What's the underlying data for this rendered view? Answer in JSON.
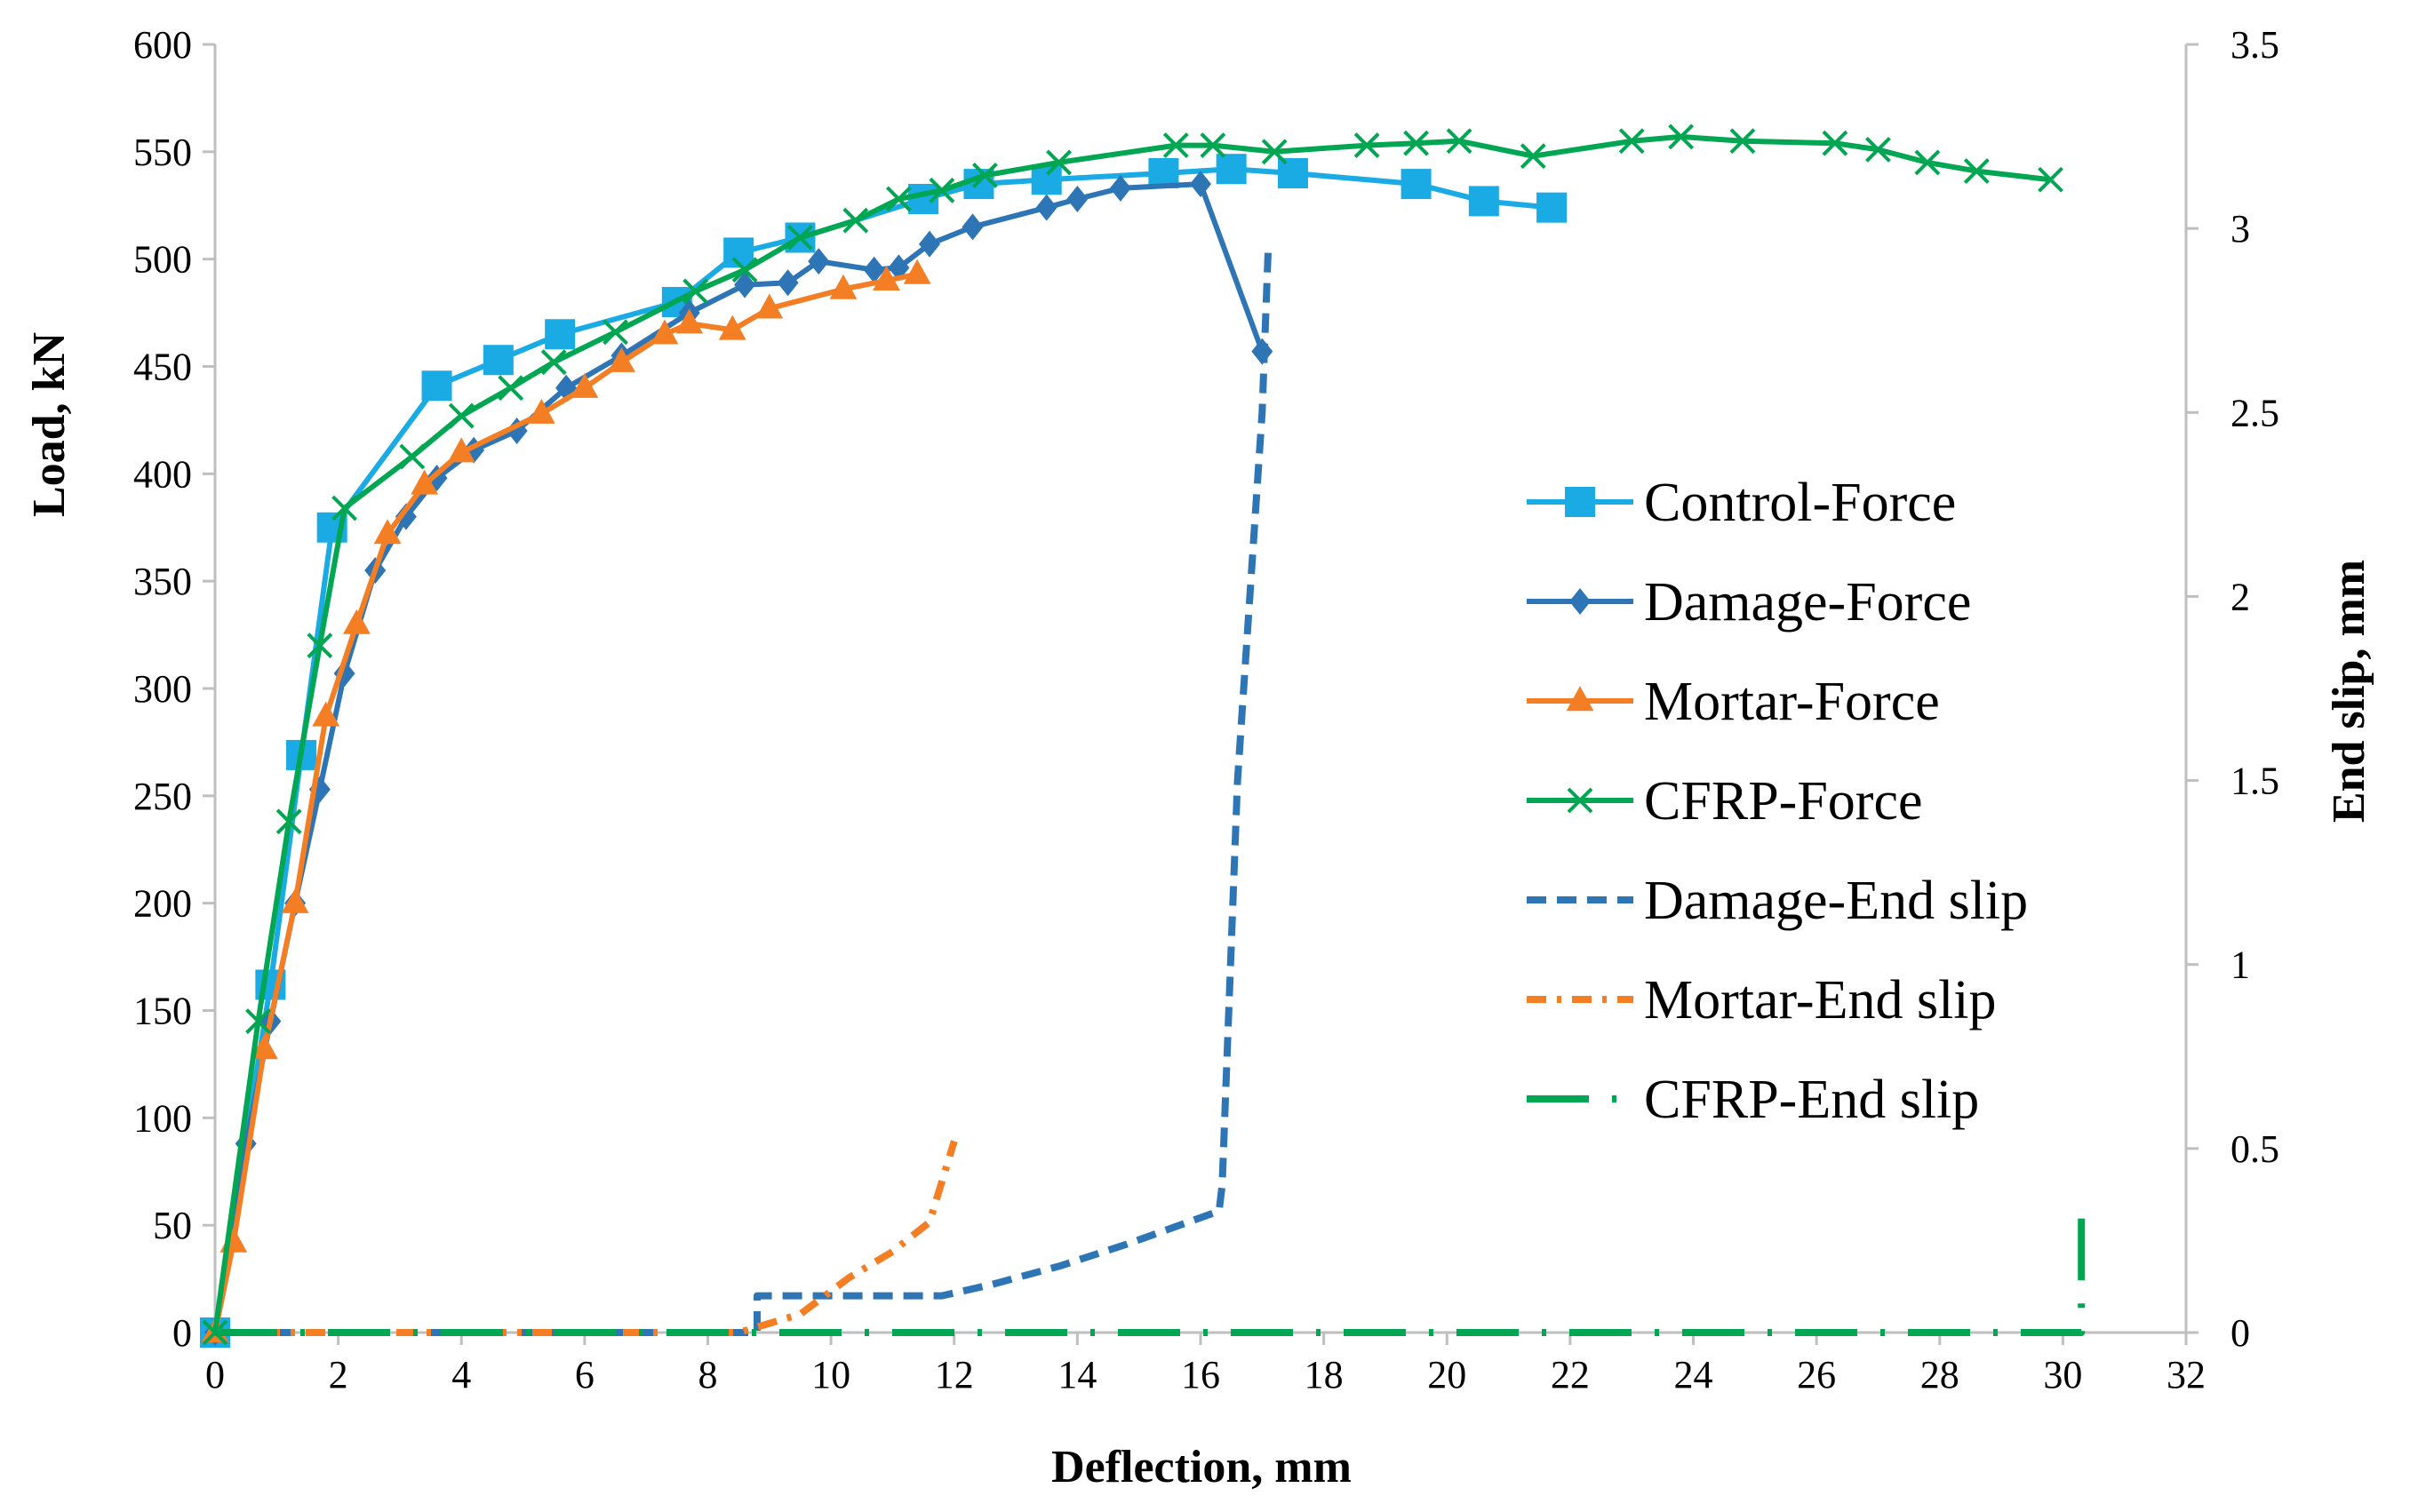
{
  "chart_data": {
    "type": "line",
    "title": "",
    "xlabel": "Deflection, mm",
    "ylabel": "Load, kN",
    "y2label": "End slip, mm",
    "xlim": [
      0,
      32
    ],
    "ylim": [
      0,
      600
    ],
    "y2lim": [
      0,
      3.5
    ],
    "xticks": [
      "0",
      "2",
      "4",
      "6",
      "8",
      "10",
      "12",
      "14",
      "16",
      "18",
      "20",
      "22",
      "24",
      "26",
      "28",
      "30",
      "32"
    ],
    "yticks": [
      "0",
      "50",
      "100",
      "150",
      "200",
      "250",
      "300",
      "350",
      "400",
      "450",
      "500",
      "550",
      "600"
    ],
    "y2ticks": [
      "0",
      "0.5",
      "1",
      "1.5",
      "2",
      "2.5",
      "3",
      "3.5"
    ],
    "grid": false,
    "legend_position": "right-center",
    "series": [
      {
        "name": "Control-Force",
        "axis": "left",
        "color": "#1AABE4",
        "marker": "square",
        "dash": "solid",
        "x": [
          0,
          0.9,
          1.4,
          1.9,
          3.6,
          4.6,
          5.6,
          7.5,
          8.5,
          9.5,
          11.5,
          12.4,
          13.5,
          15.4,
          16.5,
          17.5,
          19.5,
          20.6,
          21.7
        ],
        "y": [
          0,
          162,
          269,
          375,
          441,
          453,
          465,
          480,
          503,
          510,
          528,
          535,
          537,
          540,
          542,
          540,
          535,
          527,
          524
        ]
      },
      {
        "name": "Damage-Force",
        "axis": "left",
        "color": "#2E75B6",
        "marker": "diamond",
        "dash": "solid",
        "x": [
          0,
          0.5,
          0.9,
          1.3,
          1.7,
          2.1,
          2.6,
          3.1,
          3.6,
          4.2,
          4.9,
          5.7,
          6.6,
          7.7,
          8.6,
          9.3,
          9.8,
          10.7,
          11.1,
          11.6,
          12.3,
          13.5,
          14.0,
          14.7,
          16.0,
          17.0
        ],
        "y": [
          0,
          88,
          145,
          200,
          253,
          307,
          355,
          380,
          398,
          411,
          420,
          440,
          455,
          475,
          488,
          489,
          499,
          495,
          496,
          507,
          515,
          524,
          528,
          533,
          535,
          457
        ]
      },
      {
        "name": "Mortar-Force",
        "axis": "left",
        "color": "#F47E24",
        "marker": "triangle",
        "dash": "solid",
        "x": [
          0,
          0.3,
          0.8,
          1.3,
          1.8,
          2.3,
          2.8,
          3.4,
          4.0,
          5.3,
          6.0,
          6.6,
          7.3,
          7.7,
          8.4,
          9.0,
          10.2,
          10.9,
          11.4
        ],
        "y": [
          0,
          42,
          132,
          200,
          287,
          330,
          372,
          395,
          410,
          428,
          440,
          452,
          465,
          470,
          467,
          477,
          486,
          490,
          493
        ]
      },
      {
        "name": "CFRP-Force",
        "axis": "left",
        "color": "#00A651",
        "marker": "x",
        "dash": "solid",
        "x": [
          0,
          0.7,
          1.2,
          1.7,
          2.1,
          3.2,
          4.0,
          4.8,
          5.5,
          6.5,
          7.8,
          8.6,
          9.5,
          10.4,
          11.1,
          11.8,
          12.5,
          13.7,
          15.6,
          16.2,
          17.2,
          18.7,
          19.5,
          20.2,
          21.4,
          23.0,
          23.8,
          24.8,
          26.3,
          27.0,
          27.8,
          28.6,
          29.8
        ],
        "y": [
          0,
          145,
          238,
          320,
          384,
          408,
          427,
          440,
          452,
          466,
          485,
          495,
          510,
          518,
          528,
          532,
          539,
          545,
          553,
          553,
          550,
          553,
          554,
          555,
          548,
          555,
          557,
          555,
          554,
          551,
          545,
          541,
          537
        ]
      },
      {
        "name": "Damage-End slip",
        "axis": "right",
        "color": "#2E75B6",
        "marker": "none",
        "dash": "dash",
        "x": [
          0,
          8.8,
          8.8,
          9.2,
          10.5,
          11.8,
          12.6,
          13.7,
          14.8,
          15.8,
          16.3,
          16.35,
          16.6,
          17.0,
          17.1
        ],
        "y": [
          0,
          0,
          0.1,
          0.1,
          0.1,
          0.1,
          0.13,
          0.18,
          0.24,
          0.3,
          0.33,
          0.4,
          1.5,
          2.5,
          2.95
        ]
      },
      {
        "name": "Mortar-End slip",
        "axis": "right",
        "color": "#F47E24",
        "marker": "none",
        "dash": "dashdot",
        "x": [
          0,
          8.5,
          9.5,
          10.3,
          11.0,
          11.6,
          12.0
        ],
        "y": [
          0,
          0,
          0.05,
          0.15,
          0.22,
          0.3,
          0.52
        ]
      },
      {
        "name": "CFRP-End slip",
        "axis": "right",
        "color": "#00A651",
        "marker": "none",
        "dash": "longdashdot",
        "x": [
          0,
          30.3,
          30.3
        ],
        "y": [
          0,
          0,
          0.31
        ]
      }
    ]
  }
}
